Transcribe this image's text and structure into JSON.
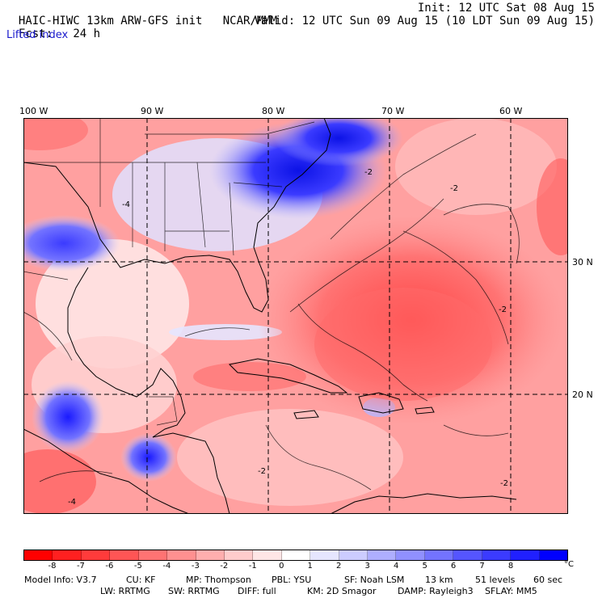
{
  "header": {
    "model_title": "HAIC-HIWC 13km ARW-GFS init",
    "org": "NCAR/MMM",
    "fcst_label": "Fcst:",
    "fcst_value": "24 h",
    "init": "Init: 12 UTC Sat 08 Aug 15",
    "valid": "Valid: 12 UTC Sun 09 Aug 15 (10 LDT Sun 09 Aug 15)",
    "field": "Lifted index"
  },
  "map": {
    "longitude_labels": [
      "100 W",
      "90 W",
      "80 W",
      "70 W",
      "60 W"
    ],
    "latitude_labels": [
      "30 N",
      "20 N"
    ],
    "contour_labels": [
      "-2",
      "-2",
      "-2",
      "-4",
      "-2",
      "-2",
      "-4"
    ]
  },
  "colorbar": {
    "colors": [
      "#ff0000",
      "#ff2020",
      "#ff3b3b",
      "#ff5555",
      "#ff7373",
      "#ff9090",
      "#ffaeae",
      "#ffcccc",
      "#ffe6e6",
      "#ffffff",
      "#e6e6ff",
      "#ccccff",
      "#aeaeff",
      "#9090ff",
      "#7373ff",
      "#5555ff",
      "#3b3bff",
      "#2020ff",
      "#0000ff"
    ],
    "tick_labels": [
      "-8",
      "-7",
      "-6",
      "-5",
      "-4",
      "-3",
      "-2",
      "-1",
      "0",
      "1",
      "2",
      "3",
      "4",
      "5",
      "6",
      "7",
      "8"
    ],
    "unit": "°C"
  },
  "model_info": {
    "row1": [
      "Model Info: V3.7",
      "CU: KF",
      "MP: Thompson",
      "PBL: YSU",
      "SF: Noah LSM",
      "13 km",
      "51 levels",
      "60 sec"
    ],
    "row2": [
      "LW: RRTMG",
      "SW: RRTMG",
      "DIFF: full",
      "KM: 2D Smagor",
      "DAMP: Rayleigh3",
      "SFLAY: MM5"
    ]
  }
}
